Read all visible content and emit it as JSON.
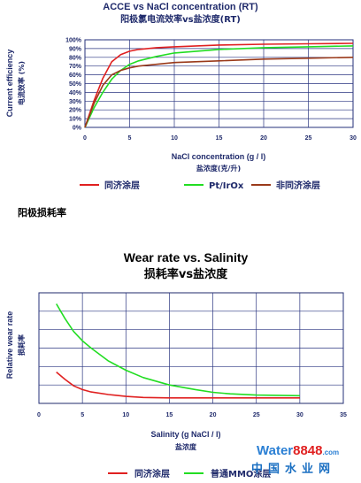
{
  "chart_data": [
    {
      "type": "line",
      "title": "ACCE vs NaCl concentration (RT)",
      "subtitle": "阳极氯电流效率vs盐浓度(RT)",
      "ylabel": "Current efficiency",
      "ylabel_cn": "电流效率 (%)",
      "xlabel": "NaCl concentration (g / l)",
      "xlabel_cn": "盐浓度(克/升)",
      "xlim": [
        0,
        30
      ],
      "ylim": [
        0,
        100
      ],
      "x_ticks": [
        "0",
        "5",
        "10",
        "15",
        "20",
        "25",
        "30"
      ],
      "y_ticks": [
        "0%",
        "10%",
        "20%",
        "30%",
        "40%",
        "50%",
        "60%",
        "70%",
        "80%",
        "90%",
        "100%"
      ],
      "grid": true,
      "legend_position": "bottom",
      "series": [
        {
          "name": "同济涂层",
          "color": "#e02020",
          "x": [
            0,
            1,
            2,
            3,
            4,
            5,
            6,
            8,
            10,
            15,
            20,
            25,
            30
          ],
          "y": [
            0,
            30,
            56,
            75,
            83,
            87,
            89,
            91,
            92,
            94,
            95,
            95.5,
            96
          ]
        },
        {
          "name": "Pt/IrOx",
          "color": "#22dd22",
          "x": [
            0,
            1,
            2,
            3,
            4,
            5,
            6,
            8,
            10,
            15,
            20,
            25,
            30
          ],
          "y": [
            0,
            22,
            40,
            55,
            65,
            72,
            76,
            81,
            85,
            89,
            91,
            92,
            93
          ]
        },
        {
          "name": "非同济涂层",
          "color": "#9a3a1a",
          "x": [
            0,
            1,
            2,
            3,
            4,
            5,
            6,
            8,
            10,
            15,
            20,
            25,
            30
          ],
          "y": [
            0,
            27,
            48,
            60,
            65,
            68,
            70,
            72,
            74,
            76,
            78,
            79,
            80
          ]
        }
      ]
    },
    {
      "type": "line",
      "title": "Wear rate vs. Salinity",
      "subtitle": "损耗率vs盐浓度",
      "ylabel": "Relative wear rate",
      "ylabel_cn": "损耗率",
      "xlabel": "Salinity (g NaCl / l)",
      "xlabel_cn": "盐浓度",
      "xlim": [
        0,
        35
      ],
      "ylim": [
        0,
        6
      ],
      "x_ticks": [
        "0",
        "5",
        "10",
        "15",
        "20",
        "25",
        "30",
        "35"
      ],
      "grid": true,
      "legend_position": "bottom",
      "series": [
        {
          "name": "同济涂层",
          "color": "#e02020",
          "x": [
            2,
            3,
            4,
            5,
            6,
            8,
            10,
            12,
            15,
            20,
            25,
            30
          ],
          "y": [
            1.7,
            1.3,
            0.95,
            0.75,
            0.62,
            0.48,
            0.38,
            0.32,
            0.3,
            0.3,
            0.3,
            0.3
          ]
        },
        {
          "name": "普通MMO涂层",
          "color": "#22dd22",
          "x": [
            2,
            3,
            4,
            5,
            6,
            8,
            10,
            12,
            15,
            18,
            20,
            22,
            25,
            30
          ],
          "y": [
            5.4,
            4.6,
            3.9,
            3.4,
            3.0,
            2.3,
            1.8,
            1.4,
            1.0,
            0.75,
            0.6,
            0.52,
            0.45,
            0.42
          ]
        }
      ]
    }
  ],
  "section_heading": "阳极损耗率",
  "watermark": {
    "brand_a": "Water",
    "brand_b": "8848",
    "brand_c": ".com",
    "cn": "中国水业网",
    "color_a": "#2a7fd4",
    "color_b": "#e02020"
  }
}
